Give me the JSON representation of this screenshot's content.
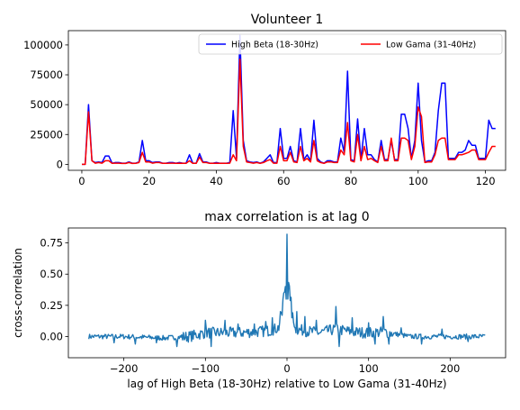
{
  "chart_data": [
    {
      "type": "line",
      "title": "Volunteer 1",
      "xlabel": "",
      "ylabel": "",
      "xlim": [
        -4,
        126
      ],
      "ylim": [
        -5000,
        112000
      ],
      "xticks": [
        0,
        20,
        40,
        60,
        80,
        100,
        120
      ],
      "yticks": [
        0,
        25000,
        50000,
        75000,
        100000
      ],
      "grid": false,
      "legend": {
        "placement": "top-right",
        "columns": 2
      },
      "x": [
        0,
        1,
        2,
        3,
        4,
        5,
        6,
        7,
        8,
        9,
        10,
        11,
        12,
        13,
        14,
        15,
        16,
        17,
        18,
        19,
        20,
        21,
        22,
        23,
        24,
        25,
        26,
        27,
        28,
        29,
        30,
        31,
        32,
        33,
        34,
        35,
        36,
        37,
        38,
        39,
        40,
        41,
        42,
        43,
        44,
        45,
        46,
        47,
        48,
        49,
        50,
        51,
        52,
        53,
        54,
        55,
        56,
        57,
        58,
        59,
        60,
        61,
        62,
        63,
        64,
        65,
        66,
        67,
        68,
        69,
        70,
        71,
        72,
        73,
        74,
        75,
        76,
        77,
        78,
        79,
        80,
        81,
        82,
        83,
        84,
        85,
        86,
        87,
        88,
        89,
        90,
        91,
        92,
        93,
        94,
        95,
        96,
        97,
        98,
        99,
        100,
        101,
        102,
        103,
        104,
        105,
        106,
        107,
        108,
        109,
        110,
        111,
        112,
        113,
        114,
        115,
        116,
        117,
        118,
        119,
        120,
        121,
        122,
        123
      ],
      "series": [
        {
          "name": "High Beta (18-30Hz)",
          "color": "#0000ff",
          "values": [
            0,
            0,
            50000,
            3000,
            1500,
            2000,
            1500,
            7000,
            7000,
            1000,
            1500,
            1500,
            1000,
            1000,
            2000,
            1000,
            1000,
            2000,
            20000,
            3000,
            3000,
            1500,
            2000,
            2000,
            1000,
            1000,
            1500,
            1500,
            1000,
            1500,
            1000,
            1000,
            8000,
            1000,
            1000,
            9000,
            2000,
            2000,
            1000,
            1000,
            1500,
            1000,
            1000,
            1000,
            1500,
            45000,
            5000,
            108000,
            20000,
            3000,
            2000,
            1500,
            2000,
            1000,
            2000,
            5000,
            8000,
            1500,
            1500,
            30000,
            5000,
            5000,
            15000,
            3000,
            2000,
            30000,
            4000,
            8000,
            3000,
            37000,
            5000,
            2000,
            1000,
            3000,
            3000,
            2000,
            2000,
            22000,
            10000,
            78000,
            4000,
            3000,
            38000,
            4000,
            30000,
            8000,
            8000,
            4000,
            2000,
            20000,
            4000,
            4000,
            20000,
            4000,
            4000,
            42000,
            42000,
            30000,
            5000,
            20000,
            68000,
            20000,
            2000,
            3000,
            3000,
            10000,
            45000,
            68000,
            68000,
            5000,
            5000,
            5000,
            10000,
            10000,
            12000,
            20000,
            16000,
            16000,
            5000,
            5000,
            5000,
            37000,
            30000,
            30000
          ]
        },
        {
          "name": "Low Gama (31-40Hz)",
          "color": "#ff0000",
          "values": [
            0,
            0,
            44000,
            3000,
            1000,
            1500,
            1000,
            3000,
            3000,
            800,
            1000,
            1000,
            700,
            700,
            1500,
            700,
            800,
            1500,
            10000,
            2000,
            2000,
            1000,
            1500,
            1500,
            800,
            800,
            1000,
            1000,
            800,
            1000,
            800,
            800,
            3000,
            800,
            800,
            6000,
            1500,
            1500,
            800,
            800,
            1000,
            800,
            800,
            800,
            1000,
            8000,
            3000,
            88000,
            15000,
            2000,
            1500,
            1000,
            1500,
            800,
            1500,
            3000,
            4000,
            1000,
            1000,
            15000,
            3000,
            3000,
            10000,
            2000,
            1500,
            15000,
            3000,
            5000,
            2000,
            20000,
            3000,
            1500,
            800,
            2000,
            2000,
            1500,
            1500,
            12000,
            8000,
            35000,
            3000,
            2000,
            25000,
            3000,
            15000,
            4000,
            5000,
            3000,
            1500,
            15000,
            3000,
            3000,
            22000,
            3000,
            3000,
            22000,
            22000,
            20000,
            4000,
            15000,
            48000,
            40000,
            1500,
            2000,
            2000,
            8000,
            20000,
            22000,
            22000,
            4000,
            4000,
            4000,
            8000,
            8000,
            9000,
            10000,
            12000,
            12000,
            4000,
            4000,
            4000,
            10000,
            15000,
            15000
          ]
        }
      ]
    },
    {
      "type": "line",
      "title": "max correlation is at lag 0",
      "xlabel": "lag of High Beta (18-30Hz) relative to Low Gama (31-40Hz)",
      "ylabel": "cross-correlation",
      "xlim": [
        -268,
        268
      ],
      "ylim": [
        -0.17,
        0.87
      ],
      "xticks": [
        -200,
        -100,
        0,
        100,
        200
      ],
      "yticks": [
        0.0,
        0.25,
        0.5,
        0.75
      ],
      "ytick_labels": [
        "0.00",
        "0.25",
        "0.50",
        "0.75"
      ],
      "grid": false,
      "series": [
        {
          "color": "#1f77b4",
          "x_start": -243,
          "x_end": 243,
          "peak": {
            "x": 0,
            "y": 0.82
          },
          "profile": [
            [
              -243,
              0.0
            ],
            [
              -200,
              0.0
            ],
            [
              -150,
              -0.02
            ],
            [
              -120,
              0.0
            ],
            [
              -100,
              0.05
            ],
            [
              -80,
              0.05
            ],
            [
              -60,
              0.05
            ],
            [
              -40,
              0.06
            ],
            [
              -20,
              0.08
            ],
            [
              -10,
              0.12
            ],
            [
              0,
              0.82
            ],
            [
              10,
              0.1
            ],
            [
              20,
              0.08
            ],
            [
              40,
              0.05
            ],
            [
              60,
              0.1
            ],
            [
              80,
              0.06
            ],
            [
              100,
              0.05
            ],
            [
              120,
              0.06
            ],
            [
              150,
              0.0
            ],
            [
              200,
              0.0
            ],
            [
              243,
              0.0
            ]
          ],
          "spikes": [
            [
              -100,
              0.13
            ],
            [
              -93,
              -0.08
            ],
            [
              -76,
              0.13
            ],
            [
              -60,
              0.1
            ],
            [
              -40,
              0.1
            ],
            [
              -26,
              0.12
            ],
            [
              -18,
              0.15
            ],
            [
              -6,
              0.17
            ],
            [
              6,
              0.15
            ],
            [
              12,
              0.2
            ],
            [
              22,
              0.16
            ],
            [
              36,
              0.13
            ],
            [
              60,
              0.24
            ],
            [
              64,
              -0.08
            ],
            [
              80,
              0.15
            ],
            [
              100,
              0.11
            ],
            [
              108,
              -0.06
            ],
            [
              118,
              0.16
            ],
            [
              125,
              -0.06
            ],
            [
              140,
              0.07
            ],
            [
              -212,
              -0.05
            ],
            [
              -186,
              -0.06
            ],
            [
              190,
              0.06
            ],
            [
              222,
              -0.04
            ],
            [
              -135,
              -0.08
            ],
            [
              -160,
              -0.05
            ],
            [
              165,
              -0.06
            ]
          ]
        }
      ]
    }
  ]
}
